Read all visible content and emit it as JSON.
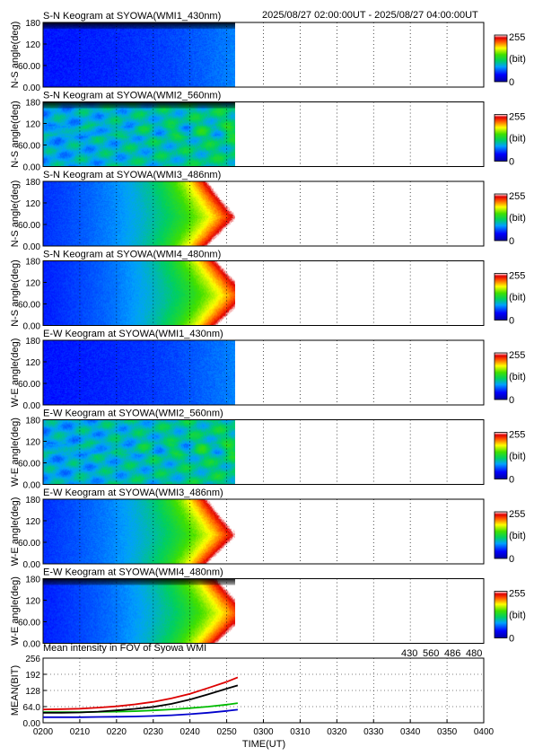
{
  "header": {
    "time_range": "2025/08/27 02:00:00UT - 2025/08/27 04:00:00UT"
  },
  "keograms": [
    {
      "title": "S-N Keogram at SYOWA(WMI1_430nm)",
      "ylabel": "N-S angle(deg)",
      "pattern": "dim_blue",
      "top_dark": true
    },
    {
      "title": "S-N Keogram at SYOWA(WMI2_560nm)",
      "ylabel": "N-S angle(deg)",
      "pattern": "cloudy_green",
      "top_dark": true
    },
    {
      "title": "S-N Keogram at SYOWA(WMI3_486nm)",
      "ylabel": "N-S angle(deg)",
      "pattern": "twilight_red",
      "top_dark": false
    },
    {
      "title": "S-N Keogram at SYOWA(WMI4_480nm)",
      "ylabel": "N-S angle(deg)",
      "pattern": "twilight",
      "top_dark": false
    },
    {
      "title": "E-W Keogram at SYOWA(WMI1_430nm)",
      "ylabel": "W-E angle(deg)",
      "pattern": "dim_blue",
      "top_dark": false
    },
    {
      "title": "E-W Keogram at SYOWA(WMI2_560nm)",
      "ylabel": "W-E angle(deg)",
      "pattern": "cloudy_green",
      "top_dark": false
    },
    {
      "title": "E-W Keogram at SYOWA(WMI3_486nm)",
      "ylabel": "W-E angle(deg)",
      "pattern": "twilight_red",
      "top_dark": false
    },
    {
      "title": "E-W Keogram at SYOWA(WMI4_480nm)",
      "ylabel": "W-E angle(deg)",
      "pattern": "twilight",
      "top_dark": true
    }
  ],
  "keogram_axis": {
    "ticks": [
      "180",
      "120",
      "60.00",
      "0.00"
    ],
    "tick_values": [
      180,
      120,
      60,
      0
    ],
    "ylim": [
      0,
      180
    ],
    "data_end_time": "02:53"
  },
  "colorbar": {
    "max_label": "255",
    "unit_label": "(bit)",
    "min_label": "0",
    "range": [
      0,
      255
    ]
  },
  "chart_data": {
    "type": "line",
    "title": "Mean intensity in FOV of Syowa WMI",
    "xlabel": "TIME(UT)",
    "ylabel": "MEAN(BIT)",
    "x_ticks": [
      "0200",
      "0210",
      "0220",
      "0230",
      "0240",
      "0250",
      "0300",
      "0310",
      "0320",
      "0330",
      "0340",
      "0350",
      "0400"
    ],
    "xlim_minutes_after_0200": [
      0,
      120
    ],
    "y_ticks": [
      "256",
      "192",
      "128",
      "64.0",
      "0.00"
    ],
    "y_tick_values": [
      256,
      192,
      128,
      64,
      0
    ],
    "ylim": [
      0,
      256
    ],
    "x_minutes_after_0200": [
      0,
      5,
      10,
      15,
      20,
      25,
      30,
      35,
      40,
      45,
      50,
      53
    ],
    "series": [
      {
        "name": "430",
        "color": "#0000cc",
        "values": [
          22,
          22,
          22,
          23,
          24,
          25,
          27,
          30,
          34,
          40,
          47,
          52
        ]
      },
      {
        "name": "560",
        "color": "#00bb00",
        "values": [
          42,
          42,
          42,
          43,
          44,
          46,
          49,
          53,
          58,
          64,
          72,
          78
        ]
      },
      {
        "name": "486",
        "color": "#dd0000",
        "values": [
          53,
          54,
          56,
          60,
          65,
          73,
          83,
          97,
          115,
          138,
          162,
          180
        ]
      },
      {
        "name": "480",
        "color": "#000000",
        "values": [
          40,
          40,
          41,
          44,
          49,
          55,
          63,
          75,
          92,
          113,
          135,
          148
        ]
      }
    ]
  }
}
